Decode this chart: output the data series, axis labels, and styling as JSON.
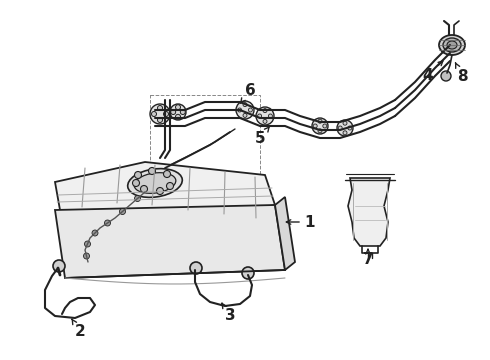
{
  "bg_color": "#ffffff",
  "line_color": "#222222",
  "label_color": "#000000",
  "figsize": [
    4.9,
    3.6
  ],
  "dpi": 100
}
